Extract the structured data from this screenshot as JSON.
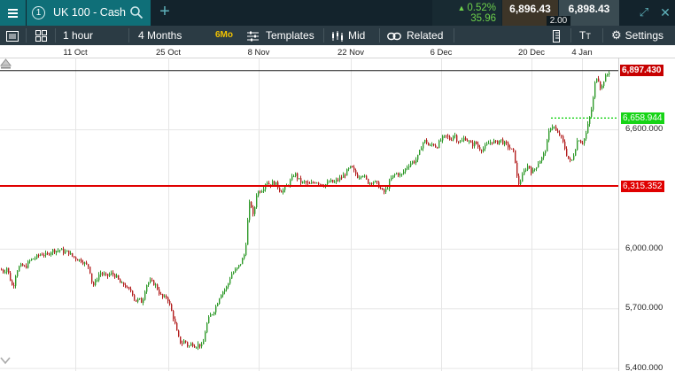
{
  "header": {
    "tab_number": "1",
    "instrument": "UK 100 - Cash",
    "change_pct": "0.52%",
    "change_pts": "35.96",
    "sell_price": "6,896.43",
    "buy_price": "6,898.43",
    "spread": "2.00"
  },
  "toolbar": {
    "interval": "1 hour",
    "range": "4 Months",
    "range_badge": "6Mo",
    "templates": "Templates",
    "price_type": "Mid",
    "related": "Related",
    "settings": "Settings"
  },
  "colors": {
    "up": "#2f9a2a",
    "down": "#b31e1e",
    "current_price": "#c70000",
    "support_line": "#e00000",
    "dotted_level": "#16d416"
  },
  "chart_data": {
    "type": "candlestick",
    "x_tick_labels": [
      "11 Oct",
      "25 Oct",
      "8 Nov",
      "22 Nov",
      "6 Dec",
      "20 Dec",
      "4 Jan"
    ],
    "y_tick_labels": [
      "6,600.000",
      "6,000.000",
      "5,700.000",
      "5,400.000"
    ],
    "y_ticks": [
      6600,
      6000,
      5700,
      5400
    ],
    "ylim": [
      5385,
      6961
    ],
    "current_price": 6897.43,
    "current_price_label": "6,897.430",
    "horizontal_levels": [
      {
        "value": 6315.352,
        "label": "6,315.352",
        "style": "solid"
      },
      {
        "value": 6658.944,
        "label": "6,658.944",
        "style": "dotted"
      }
    ],
    "close_path": [
      [
        0,
        5895
      ],
      [
        4,
        5885
      ],
      [
        7,
        5905
      ],
      [
        10,
        5860
      ],
      [
        14,
        5800
      ],
      [
        17,
        5870
      ],
      [
        20,
        5905
      ],
      [
        24,
        5915
      ],
      [
        28,
        5905
      ],
      [
        32,
        5935
      ],
      [
        36,
        5950
      ],
      [
        40,
        5955
      ],
      [
        44,
        5970
      ],
      [
        48,
        5975
      ],
      [
        52,
        5965
      ],
      [
        56,
        5985
      ],
      [
        60,
        5992
      ],
      [
        64,
        5990
      ],
      [
        68,
        5995
      ],
      [
        72,
        5980
      ],
      [
        76,
        5985
      ],
      [
        80,
        5965
      ],
      [
        84,
        5955
      ],
      [
        88,
        5945
      ],
      [
        92,
        5940
      ],
      [
        96,
        5920
      ],
      [
        100,
        5910
      ],
      [
        104,
        5810
      ],
      [
        108,
        5840
      ],
      [
        112,
        5880
      ],
      [
        116,
        5870
      ],
      [
        120,
        5860
      ],
      [
        124,
        5875
      ],
      [
        128,
        5870
      ],
      [
        132,
        5850
      ],
      [
        136,
        5820
      ],
      [
        140,
        5820
      ],
      [
        144,
        5790
      ],
      [
        148,
        5790
      ],
      [
        152,
        5735
      ],
      [
        156,
        5745
      ],
      [
        160,
        5730
      ],
      [
        164,
        5815
      ],
      [
        168,
        5835
      ],
      [
        172,
        5830
      ],
      [
        176,
        5810
      ],
      [
        180,
        5770
      ],
      [
        184,
        5750
      ],
      [
        188,
        5760
      ],
      [
        192,
        5700
      ],
      [
        196,
        5640
      ],
      [
        200,
        5560
      ],
      [
        204,
        5520
      ],
      [
        208,
        5540
      ],
      [
        212,
        5505
      ],
      [
        216,
        5525
      ],
      [
        220,
        5510
      ],
      [
        224,
        5520
      ],
      [
        228,
        5505
      ],
      [
        232,
        5610
      ],
      [
        236,
        5660
      ],
      [
        240,
        5680
      ],
      [
        244,
        5720
      ],
      [
        248,
        5770
      ],
      [
        252,
        5790
      ],
      [
        256,
        5810
      ],
      [
        260,
        5870
      ],
      [
        264,
        5885
      ],
      [
        268,
        5905
      ],
      [
        272,
        5935
      ],
      [
        276,
        5980
      ],
      [
        278,
        6080
      ],
      [
        280,
        6200
      ],
      [
        282,
        6250
      ],
      [
        284,
        6180
      ],
      [
        286,
        6150
      ],
      [
        288,
        6270
      ],
      [
        292,
        6290
      ],
      [
        296,
        6300
      ],
      [
        300,
        6340
      ],
      [
        304,
        6320
      ],
      [
        308,
        6335
      ],
      [
        312,
        6320
      ],
      [
        316,
        6290
      ],
      [
        320,
        6295
      ],
      [
        324,
        6320
      ],
      [
        328,
        6345
      ],
      [
        332,
        6380
      ],
      [
        336,
        6350
      ],
      [
        340,
        6330
      ],
      [
        344,
        6335
      ],
      [
        348,
        6320
      ],
      [
        352,
        6330
      ],
      [
        356,
        6340
      ],
      [
        360,
        6330
      ],
      [
        364,
        6320
      ],
      [
        368,
        6325
      ],
      [
        372,
        6340
      ],
      [
        376,
        6330
      ],
      [
        380,
        6345
      ],
      [
        384,
        6355
      ],
      [
        388,
        6370
      ],
      [
        392,
        6395
      ],
      [
        396,
        6410
      ],
      [
        400,
        6380
      ],
      [
        404,
        6360
      ],
      [
        408,
        6380
      ],
      [
        412,
        6350
      ],
      [
        416,
        6330
      ],
      [
        420,
        6340
      ],
      [
        424,
        6330
      ],
      [
        428,
        6310
      ],
      [
        432,
        6280
      ],
      [
        436,
        6300
      ],
      [
        440,
        6345
      ],
      [
        444,
        6370
      ],
      [
        448,
        6380
      ],
      [
        452,
        6365
      ],
      [
        456,
        6395
      ],
      [
        460,
        6420
      ],
      [
        464,
        6435
      ],
      [
        468,
        6440
      ],
      [
        472,
        6470
      ],
      [
        476,
        6530
      ],
      [
        480,
        6545
      ],
      [
        484,
        6510
      ],
      [
        488,
        6530
      ],
      [
        492,
        6510
      ],
      [
        496,
        6540
      ],
      [
        500,
        6560
      ],
      [
        504,
        6565
      ],
      [
        508,
        6545
      ],
      [
        512,
        6580
      ],
      [
        516,
        6540
      ],
      [
        520,
        6535
      ],
      [
        524,
        6560
      ],
      [
        528,
        6540
      ],
      [
        532,
        6520
      ],
      [
        536,
        6535
      ],
      [
        540,
        6505
      ],
      [
        544,
        6500
      ],
      [
        548,
        6515
      ],
      [
        552,
        6535
      ],
      [
        556,
        6540
      ],
      [
        560,
        6530
      ],
      [
        564,
        6550
      ],
      [
        568,
        6530
      ],
      [
        572,
        6520
      ],
      [
        576,
        6500
      ],
      [
        580,
        6480
      ],
      [
        584,
        6320
      ],
      [
        588,
        6350
      ],
      [
        592,
        6400
      ],
      [
        596,
        6420
      ],
      [
        600,
        6380
      ],
      [
        604,
        6410
      ],
      [
        608,
        6440
      ],
      [
        612,
        6460
      ],
      [
        616,
        6510
      ],
      [
        620,
        6610
      ],
      [
        624,
        6620
      ],
      [
        628,
        6580
      ],
      [
        632,
        6570
      ],
      [
        636,
        6520
      ],
      [
        640,
        6460
      ],
      [
        644,
        6430
      ],
      [
        648,
        6490
      ],
      [
        652,
        6560
      ],
      [
        656,
        6530
      ],
      [
        660,
        6560
      ],
      [
        664,
        6640
      ],
      [
        668,
        6720
      ],
      [
        670,
        6790
      ],
      [
        672,
        6870
      ],
      [
        674,
        6860
      ],
      [
        676,
        6840
      ],
      [
        678,
        6790
      ],
      [
        680,
        6840
      ],
      [
        684,
        6870
      ],
      [
        688,
        6897
      ]
    ]
  }
}
